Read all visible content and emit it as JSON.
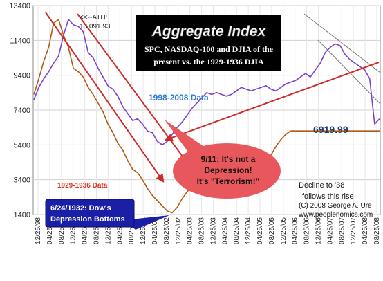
{
  "chart_data": {
    "type": "line",
    "title": "Aggregate Index",
    "subtitle_lines": [
      "SPC, NASDAQ-100 and DJIA of the",
      "present vs. the 1929-1936 DJIA"
    ],
    "ylim": [
      1400,
      13400
    ],
    "y_ticks": [
      1400,
      3400,
      5400,
      7400,
      9400,
      11400,
      13400
    ],
    "x_tick_labels": [
      "12/25/98",
      "04/25/99",
      "08/25/99",
      "12/25/99",
      "04/25/00",
      "08/25/00",
      "12/25/00",
      "04/25/01",
      "08/25/01",
      "12/25/01",
      "04/25/02",
      "08/25/02",
      "12/25/02",
      "04/25/03",
      "08/25/03",
      "12/25/03",
      "04/25/04",
      "08/25/04",
      "12/25/04",
      "04/25/05",
      "08/25/05",
      "12/25/05",
      "04/25/06",
      "08/25/06",
      "12/25/06",
      "04/25/07",
      "08/25/07",
      "12/25/07",
      "04/25/08",
      "08/25/08"
    ],
    "grid": true,
    "series": [
      {
        "name": "1998-2008 Data",
        "color": "#7b3fd1",
        "values": [
          8000,
          8700,
          9200,
          9600,
          10100,
          10500,
          11700,
          12600,
          12300,
          12200,
          11900,
          10700,
          10400,
          9800,
          9300,
          8800,
          8600,
          8200,
          7600,
          7200,
          6800,
          6900,
          6600,
          6200,
          6100,
          5600,
          5400,
          5600,
          6000,
          6400,
          6700,
          7100,
          7500,
          7800,
          8100,
          8400,
          8300,
          8400,
          8300,
          8200,
          8300,
          8500,
          8700,
          8600,
          8500,
          8600,
          8700,
          8800,
          8600,
          8500,
          8700,
          8900,
          9000,
          9100,
          9300,
          9500,
          9300,
          9700,
          10100,
          10700,
          11000,
          11200,
          11100,
          10600,
          10300,
          10100,
          9900,
          9700,
          9200,
          6600,
          6900
        ]
      },
      {
        "name": "1929-1936 Data",
        "color": "#b25a12",
        "values": [
          8300,
          9200,
          10200,
          11000,
          12400,
          12600,
          11700,
          11000,
          9800,
          9600,
          9300,
          8700,
          8300,
          7800,
          7300,
          6600,
          6100,
          5500,
          5100,
          4500,
          4000,
          3800,
          3400,
          2900,
          2500,
          2200,
          1900,
          1600,
          1500,
          1800,
          2300,
          2700,
          3000,
          3200,
          3300,
          3400,
          3600,
          3500,
          3500,
          3400,
          3300,
          3200,
          3300,
          3400,
          3600,
          3800,
          4100,
          4400,
          4800,
          5300,
          5700,
          6000,
          6200,
          6200,
          6200,
          6200,
          6200,
          6200,
          6200,
          6200,
          6200,
          6200,
          6200,
          6200,
          6200,
          6200,
          6200,
          6200,
          6200,
          6200,
          6200
        ]
      }
    ],
    "annotations": {
      "ath_line1": "<<--ATH:",
      "ath_line2": "13,091.93",
      "series_label_modern": "1998-2008 Data",
      "series_label_old": "1929-1936 Data",
      "last_value": "6919.99",
      "bubble_line1": "9/11: It's not a",
      "bubble_line2": "Depression!",
      "bubble_line3": "It's \"Terrorism!\"",
      "decline_line1": "Decline to '38",
      "decline_line2": "follows this rise",
      "bottom_line1": "6/24/1932: Dow's",
      "bottom_line2": "Depression Bottoms",
      "copyright": "(C) 2008 George A. Ure",
      "website": "www.peoplenomics.com"
    },
    "colors": {
      "modern_series": "#7b3fd1",
      "old_series": "#b25a12",
      "modern_label": "#2a7bd4",
      "old_label": "#e0301e",
      "trend_arrows": "#cf2b2b",
      "channel_lines": "#777777",
      "title_box": "#000000",
      "bubble_fill": "#e8575b",
      "bottom_box": "#1b1fa5",
      "last_value_text": "#1e3a6e"
    }
  }
}
